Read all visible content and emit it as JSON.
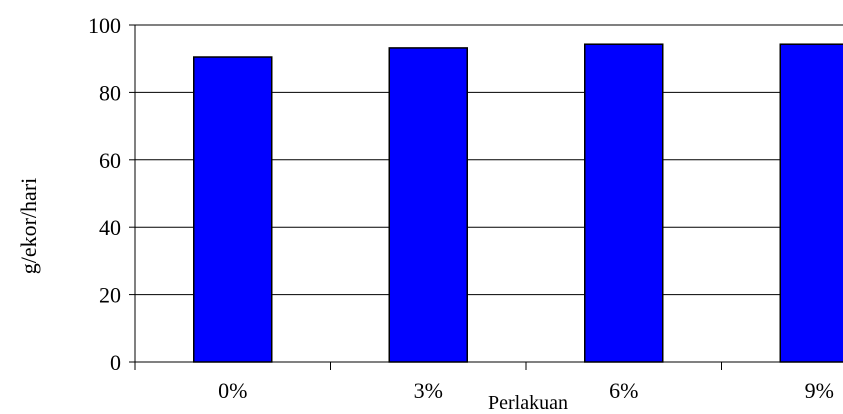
{
  "chart_data": {
    "type": "bar",
    "title": "",
    "xlabel": "Perlakuan",
    "ylabel": "g/ekor/hari",
    "categories": [
      "0%",
      "3%",
      "6%",
      "9%"
    ],
    "values": [
      90.5,
      93.2,
      94.3,
      94.3
    ],
    "ylim": [
      0,
      100
    ],
    "yticks": [
      0,
      20,
      40,
      60,
      80,
      100
    ],
    "grid": true,
    "legend": "none",
    "bar_color": "#0000FF",
    "bar_edge_color": "#000000"
  }
}
